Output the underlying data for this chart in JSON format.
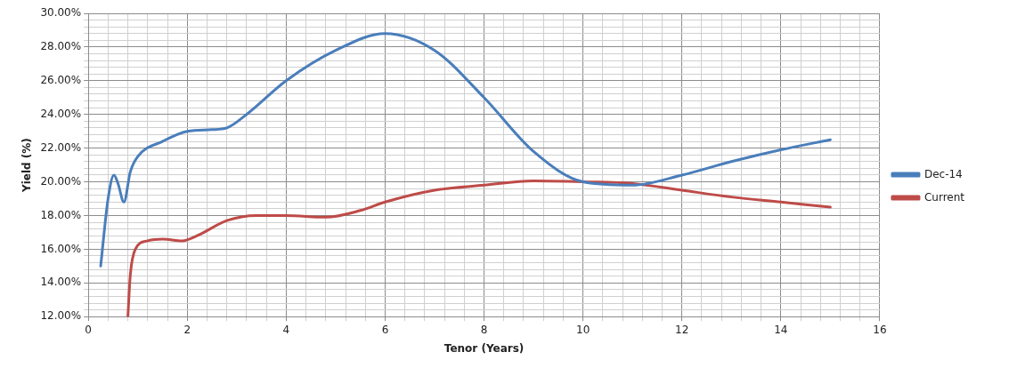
{
  "chart_data": {
    "type": "line",
    "xlabel": "Tenor (Years)",
    "ylabel": "Yield (%)",
    "xlim": [
      0,
      16
    ],
    "ylim": [
      12,
      30
    ],
    "xticks": [
      0,
      {
        "value": 0.4,
        "label": null
      },
      {
        "value": 0.8,
        "label": null
      },
      {
        "value": 1.2,
        "label": null
      },
      {
        "value": 1.6,
        "label": null
      },
      2,
      {
        "value": 2.4,
        "label": null
      },
      {
        "value": 2.8,
        "label": null
      },
      {
        "value": 3.2,
        "label": null
      },
      {
        "value": 3.6,
        "label": null
      },
      4,
      {
        "value": 4.4,
        "label": null
      },
      {
        "value": 4.8,
        "label": null
      },
      {
        "value": 5.2,
        "label": null
      },
      {
        "value": 5.6,
        "label": null
      },
      6,
      {
        "value": 6.4,
        "label": null
      },
      {
        "value": 6.8,
        "label": null
      },
      {
        "value": 7.2,
        "label": null
      },
      {
        "value": 7.6,
        "label": null
      },
      8,
      {
        "value": 8.4,
        "label": null
      },
      {
        "value": 8.8,
        "label": null
      },
      {
        "value": 9.2,
        "label": null
      },
      {
        "value": 9.6,
        "label": null
      },
      10,
      {
        "value": 10.4,
        "label": null
      },
      {
        "value": 10.8,
        "label": null
      },
      {
        "value": 11.2,
        "label": null
      },
      {
        "value": 11.6,
        "label": null
      },
      12,
      {
        "value": 12.4,
        "label": null
      },
      {
        "value": 12.8,
        "label": null
      },
      {
        "value": 13.2,
        "label": null
      },
      {
        "value": 13.6,
        "label": null
      },
      14,
      {
        "value": 14.4,
        "label": null
      },
      {
        "value": 14.8,
        "label": null
      },
      {
        "value": 15.2,
        "label": null
      },
      {
        "value": 15.6,
        "label": null
      },
      16
    ],
    "yticks": [
      {
        "value": 12,
        "label": "12.00%"
      },
      {
        "value": 12.4,
        "label": null
      },
      {
        "value": 12.8,
        "label": null
      },
      {
        "value": 13.2,
        "label": null
      },
      {
        "value": 13.6,
        "label": null
      },
      {
        "value": 14,
        "label": "14.00%"
      },
      {
        "value": 14.4,
        "label": null
      },
      {
        "value": 14.8,
        "label": null
      },
      {
        "value": 15.2,
        "label": null
      },
      {
        "value": 15.6,
        "label": null
      },
      {
        "value": 16,
        "label": "16.00%"
      },
      {
        "value": 16.4,
        "label": null
      },
      {
        "value": 16.8,
        "label": null
      },
      {
        "value": 17.2,
        "label": null
      },
      {
        "value": 17.6,
        "label": null
      },
      {
        "value": 18,
        "label": "18.00%"
      },
      {
        "value": 18.4,
        "label": null
      },
      {
        "value": 18.8,
        "label": null
      },
      {
        "value": 19.2,
        "label": null
      },
      {
        "value": 19.6,
        "label": null
      },
      {
        "value": 20,
        "label": "20.00%"
      },
      {
        "value": 20.4,
        "label": null
      },
      {
        "value": 20.8,
        "label": null
      },
      {
        "value": 21.2,
        "label": null
      },
      {
        "value": 21.6,
        "label": null
      },
      {
        "value": 22,
        "label": "22.00%"
      },
      {
        "value": 22.4,
        "label": null
      },
      {
        "value": 22.8,
        "label": null
      },
      {
        "value": 23.2,
        "label": null
      },
      {
        "value": 23.6,
        "label": null
      },
      {
        "value": 24,
        "label": "24.00%"
      },
      {
        "value": 24.4,
        "label": null
      },
      {
        "value": 24.8,
        "label": null
      },
      {
        "value": 25.2,
        "label": null
      },
      {
        "value": 25.6,
        "label": null
      },
      {
        "value": 26,
        "label": "26.00%"
      },
      {
        "value": 26.4,
        "label": null
      },
      {
        "value": 26.8,
        "label": null
      },
      {
        "value": 27.2,
        "label": null
      },
      {
        "value": 27.6,
        "label": null
      },
      {
        "value": 28,
        "label": "28.00%"
      },
      {
        "value": 28.4,
        "label": null
      },
      {
        "value": 28.8,
        "label": null
      },
      {
        "value": 29.2,
        "label": null
      },
      {
        "value": 29.6,
        "label": null
      },
      {
        "value": 30,
        "label": "30.00%"
      }
    ],
    "grid": true,
    "legend": "right",
    "marker": "none",
    "line_style": "solid",
    "series": [
      {
        "name": "Dec-14",
        "color": "#4a7ebb",
        "x": [
          0.25,
          0.4,
          0.52,
          0.6,
          0.72,
          0.85,
          1.0,
          1.5,
          2.0,
          2.5,
          2.8,
          3.2,
          4.0,
          5.0,
          6.0,
          7.0,
          8.0,
          9.0,
          10.0,
          11.0,
          12.0,
          13.0,
          14.0,
          15.0
        ],
        "values": [
          15.0,
          19.0,
          20.4,
          19.9,
          18.8,
          20.6,
          21.5,
          22.4,
          23.0,
          23.1,
          23.2,
          24.0,
          26.0,
          27.8,
          28.8,
          27.8,
          25.0,
          21.8,
          20.0,
          19.8,
          20.4,
          21.2,
          21.9,
          22.5
        ]
      },
      {
        "name": "Current",
        "color": "#be4b48",
        "x": [
          0.8,
          0.85,
          0.95,
          1.2,
          1.5,
          1.9,
          2.2,
          2.8,
          3.4,
          4.0,
          4.8,
          5.5,
          6.0,
          7.0,
          8.0,
          9.0,
          10.0,
          11.0,
          12.0,
          13.0,
          14.0,
          15.0
        ],
        "values": [
          12.0,
          14.5,
          16.0,
          16.5,
          16.6,
          16.5,
          16.8,
          17.7,
          18.0,
          18.0,
          17.9,
          18.3,
          18.8,
          19.5,
          19.8,
          20.05,
          20.0,
          19.9,
          19.5,
          19.1,
          18.8,
          18.5
        ]
      }
    ]
  }
}
